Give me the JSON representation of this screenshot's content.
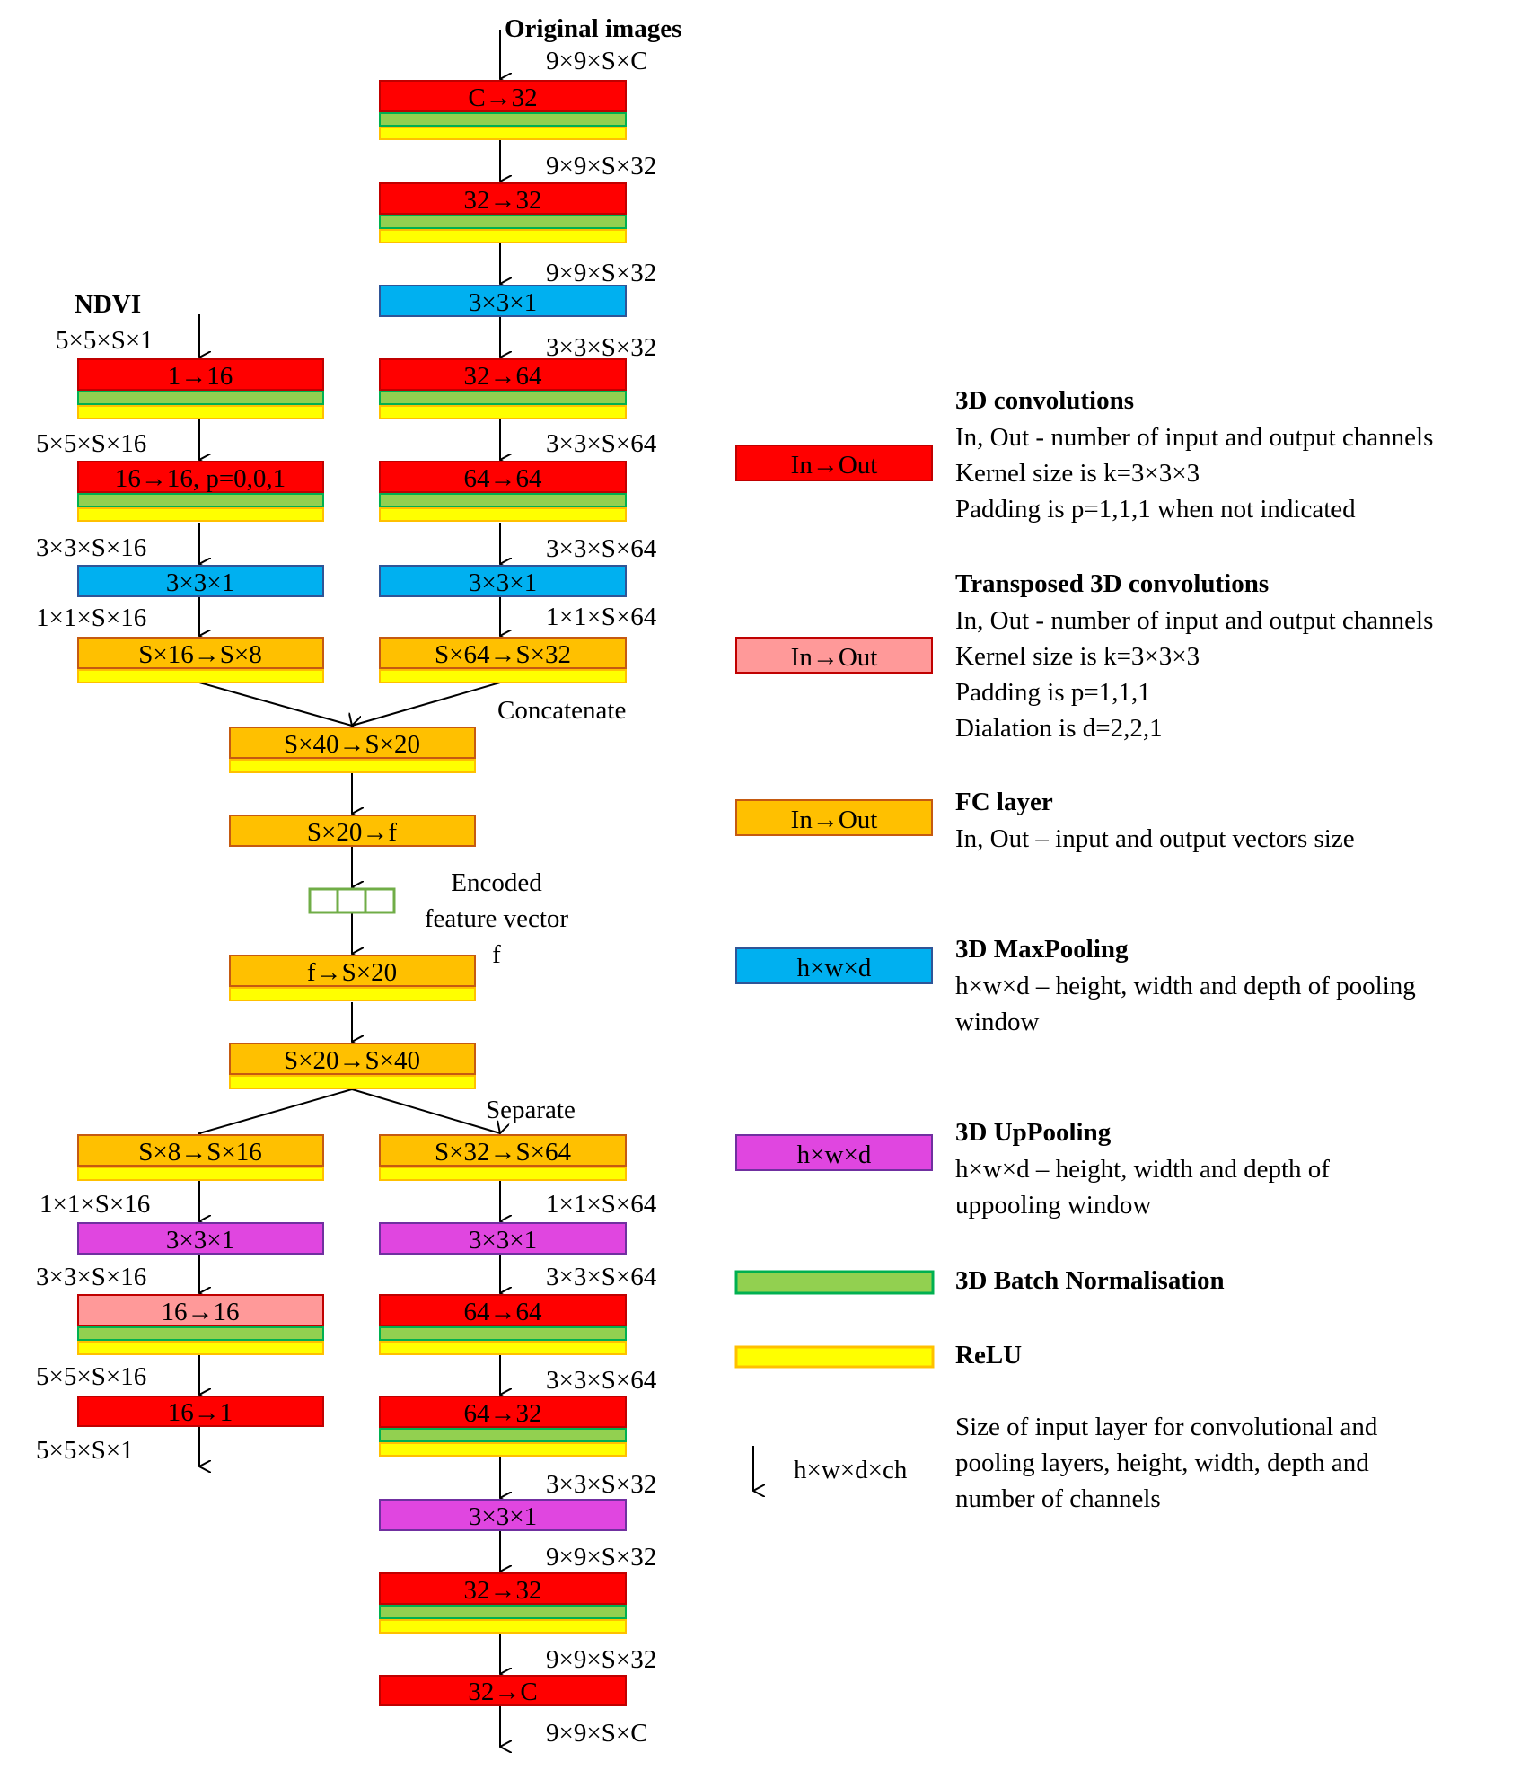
{
  "colors": {
    "conv": "#ff0000",
    "conv_border": "#c00000",
    "tconv": "#ff9999",
    "tconv_border": "#c00000",
    "fc": "#ffc000",
    "fc_border": "#c55a11",
    "pool": "#00b0f0",
    "pool_border": "#2f5597",
    "uppool": "#e046e0",
    "uppool_border": "#7030a0",
    "bn": "#92d050",
    "bn_border": "#00b050",
    "relu": "#ffff00",
    "relu_border": "#ffc000",
    "encoded_border": "#70ad47"
  },
  "headers": {
    "original_images": "Original images",
    "ndvi": "NDVI"
  },
  "main_branch": {
    "blocks": {
      "c_to_32": "C→32",
      "b32_to_32_a": "32→32",
      "pool_a": "3×3×1",
      "b32_to_64": "32→64",
      "b64_to_64_a": "64→64",
      "pool_b": "3×3×1",
      "fc_64_to_32": "S×64→S×32"
    },
    "sizes": {
      "s1": "9×9×S×C",
      "s2": "9×9×S×32",
      "s3": "9×9×S×32",
      "s4": "3×3×S×32",
      "s5": "3×3×S×64",
      "s6": "3×3×S×64",
      "s7": "1×1×S×64"
    }
  },
  "ndvi_branch": {
    "blocks": {
      "b1_to_16": "1→16",
      "b16_to_16_p": "16→16, p=0,0,1",
      "pool": "3×3×1",
      "fc_16_to_8": "S×16→S×8"
    },
    "sizes": {
      "s1": "5×5×S×1",
      "s2": "5×5×S×16",
      "s3": "3×3×S×16",
      "s4": "1×1×S×16"
    }
  },
  "middle": {
    "concatenate": "Concatenate",
    "fc_40_to_20": "S×40→S×20",
    "fc_20_to_f": "S×20→f",
    "encoded_line1": "Encoded",
    "encoded_line2": "feature vector",
    "encoded_f": "f",
    "fc_f_to_20": "f→S×20",
    "fc_20_to_40": "S×20→S×40",
    "separate": "Separate"
  },
  "decoder_left": {
    "blocks": {
      "fc_8_to_16": "S×8→S×16",
      "uppool": "3×3×1",
      "tconv_16_to_16": "16→16",
      "conv_16_to_1": "16→1"
    },
    "sizes": {
      "s1": "1×1×S×16",
      "s2": "3×3×S×16",
      "s3": "5×5×S×16",
      "s4": "5×5×S×1"
    }
  },
  "decoder_right": {
    "blocks": {
      "fc_32_to_64": "S×32→S×64",
      "uppool_a": "3×3×1",
      "b64_to_64": "64→64",
      "b64_to_32": "64→32",
      "uppool_b": "3×3×1",
      "b32_to_32": "32→32",
      "b32_to_c": "32→C"
    },
    "sizes": {
      "s1": "1×1×S×64",
      "s2": "3×3×S×64",
      "s3": "3×3×S×64",
      "s4": "3×3×S×32",
      "s5": "9×9×S×32",
      "s6": "9×9×S×32",
      "s7": "9×9×S×C"
    }
  },
  "legend": {
    "conv": {
      "swatch": "In→Out",
      "title": "3D convolutions",
      "lines": [
        "In, Out - number of input and output channels",
        "Kernel size is k=3×3×3",
        "Padding is p=1,1,1 when not indicated"
      ]
    },
    "tconv": {
      "swatch": "In→Out",
      "title": "Transposed 3D convolutions",
      "lines": [
        "In, Out - number of input and output channels",
        "Kernel size is k=3×3×3",
        "Padding is p=1,1,1",
        "Dialation is d=2,2,1"
      ]
    },
    "fc": {
      "swatch": "In→Out",
      "title": "FC layer",
      "lines": [
        "In, Out – input and output vectors size"
      ]
    },
    "pool": {
      "swatch": "h×w×d",
      "title": "3D MaxPooling",
      "lines": [
        "h×w×d – height, width and depth of pooling",
        "window"
      ]
    },
    "uppool": {
      "swatch": "h×w×d",
      "title": "3D UpPooling",
      "lines": [
        "h×w×d – height, width and depth of",
        "uppooling window"
      ]
    },
    "bn": {
      "title": "3D Batch Normalisation"
    },
    "relu": {
      "title": "ReLU"
    },
    "size": {
      "arrow_label": "h×w×d×ch",
      "lines": [
        "Size of input layer for convolutional and",
        "pooling layers, height, width, depth and",
        "number of channels"
      ]
    }
  }
}
